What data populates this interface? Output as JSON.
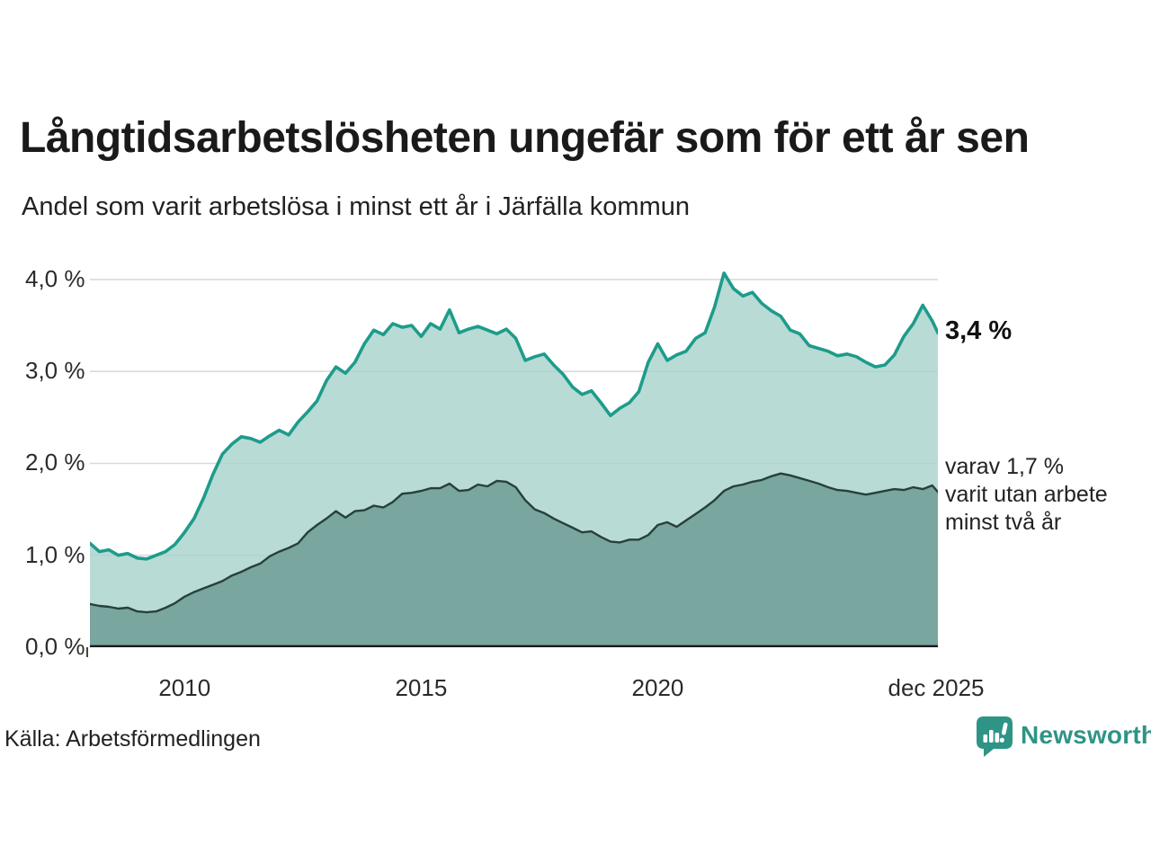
{
  "header": {
    "title": "Långtidsarbetslösheten ungefär som för ett år sen",
    "subtitle": "Andel som varit arbetslösa i minst ett år i Järfälla kommun"
  },
  "footer": {
    "source": "Källa: Arbetsförmedlingen",
    "logo_text": "Newsworthy"
  },
  "colors": {
    "title_text": "#1a1a1a",
    "body_text": "#222222",
    "grid": "#d9d9d9",
    "axis": "#1a1a1a",
    "series1_line": "#1d9c8b",
    "series1_fill": "#a9d3cc",
    "series2_line": "#27403c",
    "series2_fill": "#6f9e97",
    "logo_teal": "#2e9486"
  },
  "chart_data": {
    "type": "area",
    "title": "Långtidsarbetslösheten ungefär som för ett år sen",
    "subtitle": "Andel som varit arbetslösa i minst ett år i Järfälla kommun",
    "xlabel": "",
    "ylabel": "",
    "x_unit": "year (decimal)",
    "y_unit": "percent",
    "xlim": [
      2008.0,
      2025.92
    ],
    "ylim": [
      0,
      4.4
    ],
    "grid": true,
    "legend_position": "end-of-line labels, right side",
    "y_ticks": [
      {
        "v": 0.0,
        "label": "0,0 %"
      },
      {
        "v": 1.0,
        "label": "1,0 %"
      },
      {
        "v": 2.0,
        "label": "2,0 %"
      },
      {
        "v": 3.0,
        "label": "3,0 %"
      },
      {
        "v": 4.0,
        "label": "4,0 %"
      }
    ],
    "y_gridlines": [
      1.0,
      2.0,
      3.0,
      4.0
    ],
    "x_ticks": [
      {
        "x": 2010,
        "label": "2010"
      },
      {
        "x": 2015,
        "label": "2015"
      },
      {
        "x": 2020,
        "label": "2020"
      },
      {
        "x": 2025.92,
        "label": "dec 2025"
      }
    ],
    "x": [
      2008.0,
      2008.2,
      2008.4,
      2008.6,
      2008.8,
      2009.0,
      2009.2,
      2009.4,
      2009.6,
      2009.8,
      2010.0,
      2010.2,
      2010.4,
      2010.6,
      2010.8,
      2011.0,
      2011.2,
      2011.4,
      2011.6,
      2011.8,
      2012.0,
      2012.2,
      2012.4,
      2012.6,
      2012.8,
      2013.0,
      2013.2,
      2013.4,
      2013.6,
      2013.8,
      2014.0,
      2014.2,
      2014.4,
      2014.6,
      2014.8,
      2015.0,
      2015.2,
      2015.4,
      2015.6,
      2015.8,
      2016.0,
      2016.2,
      2016.4,
      2016.6,
      2016.8,
      2017.0,
      2017.2,
      2017.4,
      2017.6,
      2017.8,
      2018.0,
      2018.2,
      2018.4,
      2018.6,
      2018.8,
      2019.0,
      2019.2,
      2019.4,
      2019.6,
      2019.8,
      2020.0,
      2020.2,
      2020.4,
      2020.6,
      2020.8,
      2021.0,
      2021.2,
      2021.4,
      2021.6,
      2021.8,
      2022.0,
      2022.2,
      2022.4,
      2022.6,
      2022.8,
      2023.0,
      2023.2,
      2023.4,
      2023.6,
      2023.8,
      2024.0,
      2024.2,
      2024.4,
      2024.6,
      2024.8,
      2025.0,
      2025.2,
      2025.4,
      2025.6,
      2025.8,
      2025.92
    ],
    "series": [
      {
        "name": "Andel som varit arbetslösa i minst ett år",
        "end_label": "3,4 %",
        "end_value": 3.4,
        "color": "#1d9c8b",
        "fill": "#a9d3cc",
        "values": [
          1.13,
          1.04,
          1.06,
          1.0,
          1.02,
          0.97,
          0.96,
          1.0,
          1.04,
          1.12,
          1.25,
          1.4,
          1.62,
          1.88,
          2.1,
          2.21,
          2.29,
          2.27,
          2.23,
          2.3,
          2.36,
          2.31,
          2.45,
          2.56,
          2.68,
          2.9,
          3.05,
          2.98,
          3.1,
          3.3,
          3.45,
          3.4,
          3.52,
          3.48,
          3.5,
          3.38,
          3.52,
          3.46,
          3.67,
          3.42,
          3.46,
          3.49,
          3.45,
          3.41,
          3.46,
          3.36,
          3.12,
          3.16,
          3.19,
          3.07,
          2.97,
          2.83,
          2.75,
          2.79,
          2.66,
          2.52,
          2.6,
          2.66,
          2.78,
          3.1,
          3.3,
          3.12,
          3.18,
          3.22,
          3.36,
          3.42,
          3.7,
          4.07,
          3.9,
          3.82,
          3.86,
          3.74,
          3.66,
          3.6,
          3.45,
          3.41,
          3.28,
          3.25,
          3.22,
          3.17,
          3.19,
          3.16,
          3.1,
          3.05,
          3.07,
          3.18,
          3.38,
          3.52,
          3.72,
          3.55,
          3.42
        ]
      },
      {
        "name": "varav utan arbete minst två år",
        "end_label": "varav 1,7 %\nvarit utan arbete\nminst två år",
        "end_value": 1.7,
        "color": "#27403c",
        "fill": "#6f9e97",
        "values": [
          0.47,
          0.45,
          0.44,
          0.42,
          0.43,
          0.39,
          0.38,
          0.39,
          0.43,
          0.48,
          0.55,
          0.6,
          0.64,
          0.68,
          0.72,
          0.78,
          0.82,
          0.87,
          0.91,
          0.99,
          1.04,
          1.08,
          1.13,
          1.25,
          1.33,
          1.4,
          1.48,
          1.41,
          1.48,
          1.49,
          1.54,
          1.52,
          1.58,
          1.67,
          1.68,
          1.7,
          1.73,
          1.73,
          1.78,
          1.7,
          1.71,
          1.77,
          1.75,
          1.81,
          1.8,
          1.74,
          1.6,
          1.5,
          1.46,
          1.4,
          1.35,
          1.3,
          1.25,
          1.26,
          1.2,
          1.15,
          1.14,
          1.17,
          1.17,
          1.22,
          1.33,
          1.36,
          1.31,
          1.38,
          1.45,
          1.52,
          1.6,
          1.7,
          1.75,
          1.77,
          1.8,
          1.82,
          1.86,
          1.89,
          1.87,
          1.84,
          1.81,
          1.78,
          1.74,
          1.71,
          1.7,
          1.68,
          1.66,
          1.68,
          1.7,
          1.72,
          1.71,
          1.74,
          1.72,
          1.76,
          1.69
        ]
      }
    ]
  }
}
